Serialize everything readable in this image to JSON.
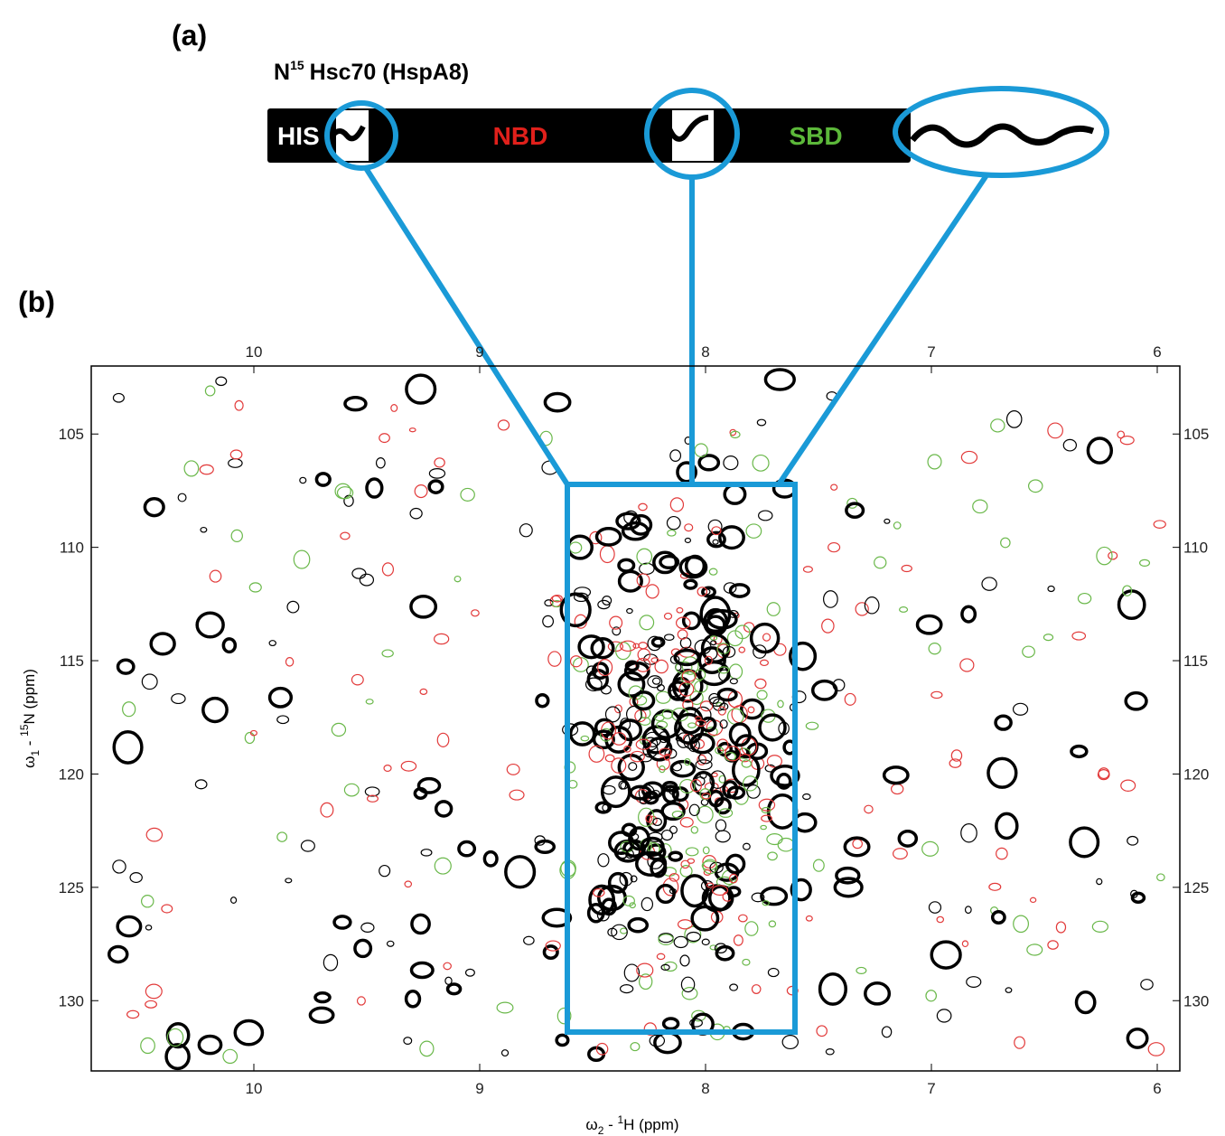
{
  "diagram": {
    "label": "(a)",
    "title_main": "N",
    "title_sup": "15",
    "title_rest": "Hsc70 (HspA8)",
    "domains": [
      "HIS",
      "NBD",
      "SBD"
    ]
  },
  "chart_data": {
    "type": "spectrum",
    "label": "(b)",
    "x_label": {
      "main": "ω",
      "sub": "2",
      "mid": " - ",
      "sup": "1",
      "rest": "H  (ppm)"
    },
    "y_label": {
      "main": "ω",
      "sub": "1",
      "mid": " - ",
      "sup": "15",
      "rest": "N  (ppm)"
    },
    "xlim": [
      10.72,
      5.9
    ],
    "xticks": [
      10,
      9,
      8,
      7,
      6
    ],
    "ylim": [
      102,
      133.1
    ],
    "yticks": [
      105,
      110,
      115,
      120,
      125,
      130
    ]
  }
}
